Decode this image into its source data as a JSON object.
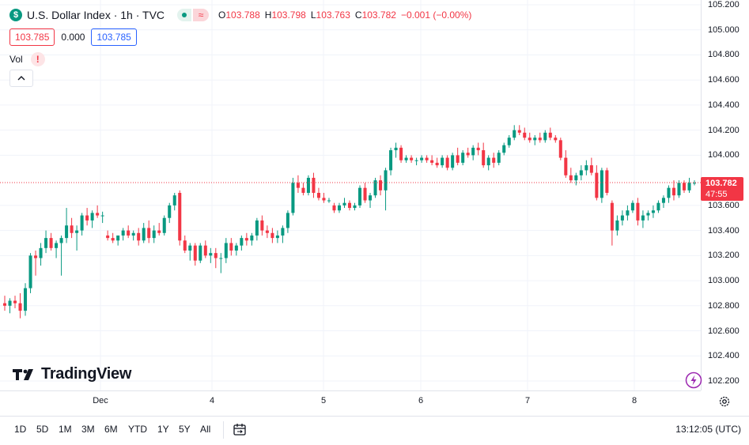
{
  "header": {
    "logo_letter": "$",
    "title": "U.S. Dollar Index · 1h · TVC",
    "wave_glyph": "≈",
    "ohlc": [
      {
        "label": "O",
        "value": "103.788"
      },
      {
        "label": "H",
        "value": "103.798"
      },
      {
        "label": "L",
        "value": "103.763"
      },
      {
        "label": "C",
        "value": "103.782"
      },
      {
        "label": "",
        "value": "−0.001 (−0.00%)"
      }
    ]
  },
  "quote": {
    "bid": "103.785",
    "spread": "0.000",
    "ask": "103.785"
  },
  "volume": {
    "label": "Vol",
    "warning": "!"
  },
  "brand": "TradingView",
  "last_price": {
    "price": "103.782",
    "countdown": "47:55",
    "color": "#f23645"
  },
  "colors": {
    "up": "#089981",
    "down": "#f23645",
    "accent": "#2962ff"
  },
  "range_buttons": [
    "1D",
    "5D",
    "1M",
    "3M",
    "6M",
    "YTD",
    "1Y",
    "5Y",
    "All"
  ],
  "clock": "13:12:05 (UTC)",
  "chart_data": {
    "type": "candlestick",
    "title": "U.S. Dollar Index · 1h · TVC",
    "yaxis": {
      "ticks": [
        "105.200",
        "105.000",
        "104.800",
        "104.600",
        "104.400",
        "104.200",
        "104.000",
        "103.600",
        "103.400",
        "103.200",
        "103.000",
        "102.800",
        "102.600",
        "102.400",
        "102.200"
      ],
      "ylim": [
        102.1,
        105.25
      ]
    },
    "xaxis": {
      "ticks": [
        "Dec",
        "4",
        "5",
        "6",
        "7",
        "8"
      ]
    },
    "last_price_line": 103.782,
    "series": [
      {
        "o": 102.82,
        "h": 102.88,
        "l": 102.76,
        "c": 102.8
      },
      {
        "o": 102.8,
        "h": 102.86,
        "l": 102.74,
        "c": 102.84
      },
      {
        "o": 102.84,
        "h": 102.88,
        "l": 102.78,
        "c": 102.82
      },
      {
        "o": 102.82,
        "h": 102.9,
        "l": 102.7,
        "c": 102.76
      },
      {
        "o": 102.76,
        "h": 102.98,
        "l": 102.72,
        "c": 102.94
      },
      {
        "o": 102.94,
        "h": 103.22,
        "l": 102.9,
        "c": 103.2
      },
      {
        "o": 103.2,
        "h": 103.24,
        "l": 103.04,
        "c": 103.18
      },
      {
        "o": 103.18,
        "h": 103.3,
        "l": 103.12,
        "c": 103.26
      },
      {
        "o": 103.26,
        "h": 103.4,
        "l": 103.22,
        "c": 103.34
      },
      {
        "o": 103.34,
        "h": 103.38,
        "l": 103.24,
        "c": 103.26
      },
      {
        "o": 103.26,
        "h": 103.32,
        "l": 103.18,
        "c": 103.3
      },
      {
        "o": 103.3,
        "h": 103.36,
        "l": 103.04,
        "c": 103.34
      },
      {
        "o": 103.34,
        "h": 103.58,
        "l": 103.3,
        "c": 103.44
      },
      {
        "o": 103.44,
        "h": 103.5,
        "l": 103.34,
        "c": 103.38
      },
      {
        "o": 103.38,
        "h": 103.44,
        "l": 103.24,
        "c": 103.4
      },
      {
        "o": 103.4,
        "h": 103.54,
        "l": 103.36,
        "c": 103.52
      },
      {
        "o": 103.52,
        "h": 103.58,
        "l": 103.44,
        "c": 103.48
      },
      {
        "o": 103.48,
        "h": 103.56,
        "l": 103.42,
        "c": 103.54
      },
      {
        "o": 103.54,
        "h": 103.6,
        "l": 103.5,
        "c": 103.52
      },
      {
        "o": 103.52,
        "h": 103.55,
        "l": 103.46,
        "c": 103.52
      },
      {
        "o": 103.36,
        "h": 103.4,
        "l": 103.32,
        "c": 103.34
      },
      {
        "o": 103.34,
        "h": 103.38,
        "l": 103.3,
        "c": 103.32
      },
      {
        "o": 103.32,
        "h": 103.36,
        "l": 103.28,
        "c": 103.36
      },
      {
        "o": 103.36,
        "h": 103.42,
        "l": 103.32,
        "c": 103.4
      },
      {
        "o": 103.4,
        "h": 103.44,
        "l": 103.34,
        "c": 103.36
      },
      {
        "o": 103.36,
        "h": 103.4,
        "l": 103.32,
        "c": 103.38
      },
      {
        "o": 103.38,
        "h": 103.42,
        "l": 103.28,
        "c": 103.32
      },
      {
        "o": 103.32,
        "h": 103.46,
        "l": 103.3,
        "c": 103.42
      },
      {
        "o": 103.42,
        "h": 103.48,
        "l": 103.3,
        "c": 103.34
      },
      {
        "o": 103.34,
        "h": 103.44,
        "l": 103.3,
        "c": 103.4
      },
      {
        "o": 103.4,
        "h": 103.46,
        "l": 103.36,
        "c": 103.38
      },
      {
        "o": 103.38,
        "h": 103.52,
        "l": 103.36,
        "c": 103.5
      },
      {
        "o": 103.5,
        "h": 103.62,
        "l": 103.46,
        "c": 103.6
      },
      {
        "o": 103.6,
        "h": 103.7,
        "l": 103.56,
        "c": 103.68
      },
      {
        "o": 103.7,
        "h": 103.72,
        "l": 103.28,
        "c": 103.32
      },
      {
        "o": 103.32,
        "h": 103.36,
        "l": 103.22,
        "c": 103.24
      },
      {
        "o": 103.24,
        "h": 103.3,
        "l": 103.16,
        "c": 103.28
      },
      {
        "o": 103.28,
        "h": 103.3,
        "l": 103.12,
        "c": 103.16
      },
      {
        "o": 103.16,
        "h": 103.3,
        "l": 103.14,
        "c": 103.28
      },
      {
        "o": 103.28,
        "h": 103.32,
        "l": 103.18,
        "c": 103.2
      },
      {
        "o": 103.2,
        "h": 103.26,
        "l": 103.14,
        "c": 103.22
      },
      {
        "o": 103.22,
        "h": 103.26,
        "l": 103.1,
        "c": 103.18
      },
      {
        "o": 103.18,
        "h": 103.22,
        "l": 103.06,
        "c": 103.18
      },
      {
        "o": 103.18,
        "h": 103.34,
        "l": 103.14,
        "c": 103.3
      },
      {
        "o": 103.3,
        "h": 103.34,
        "l": 103.2,
        "c": 103.24
      },
      {
        "o": 103.24,
        "h": 103.3,
        "l": 103.2,
        "c": 103.28
      },
      {
        "o": 103.28,
        "h": 103.36,
        "l": 103.24,
        "c": 103.34
      },
      {
        "o": 103.34,
        "h": 103.38,
        "l": 103.28,
        "c": 103.32
      },
      {
        "o": 103.32,
        "h": 103.38,
        "l": 103.28,
        "c": 103.36
      },
      {
        "o": 103.36,
        "h": 103.5,
        "l": 103.32,
        "c": 103.48
      },
      {
        "o": 103.48,
        "h": 103.52,
        "l": 103.36,
        "c": 103.4
      },
      {
        "o": 103.4,
        "h": 103.44,
        "l": 103.34,
        "c": 103.38
      },
      {
        "o": 103.38,
        "h": 103.42,
        "l": 103.3,
        "c": 103.34
      },
      {
        "o": 103.34,
        "h": 103.4,
        "l": 103.3,
        "c": 103.36
      },
      {
        "o": 103.36,
        "h": 103.44,
        "l": 103.3,
        "c": 103.42
      },
      {
        "o": 103.42,
        "h": 103.56,
        "l": 103.38,
        "c": 103.54
      },
      {
        "o": 103.54,
        "h": 103.82,
        "l": 103.52,
        "c": 103.78
      },
      {
        "o": 103.78,
        "h": 103.84,
        "l": 103.7,
        "c": 103.74
      },
      {
        "o": 103.74,
        "h": 103.78,
        "l": 103.68,
        "c": 103.7
      },
      {
        "o": 103.7,
        "h": 103.84,
        "l": 103.68,
        "c": 103.82
      },
      {
        "o": 103.82,
        "h": 103.86,
        "l": 103.66,
        "c": 103.7
      },
      {
        "o": 103.7,
        "h": 103.74,
        "l": 103.64,
        "c": 103.66
      },
      {
        "o": 103.66,
        "h": 103.7,
        "l": 103.62,
        "c": 103.64
      },
      {
        "o": 103.64,
        "h": 103.66,
        "l": 103.62,
        "c": 103.64
      },
      {
        "o": 103.6,
        "h": 103.62,
        "l": 103.54,
        "c": 103.56
      },
      {
        "o": 103.56,
        "h": 103.62,
        "l": 103.54,
        "c": 103.6
      },
      {
        "o": 103.6,
        "h": 103.66,
        "l": 103.58,
        "c": 103.62
      },
      {
        "o": 103.62,
        "h": 103.64,
        "l": 103.56,
        "c": 103.58
      },
      {
        "o": 103.58,
        "h": 103.62,
        "l": 103.56,
        "c": 103.6
      },
      {
        "o": 103.6,
        "h": 103.76,
        "l": 103.58,
        "c": 103.74
      },
      {
        "o": 103.74,
        "h": 103.78,
        "l": 103.62,
        "c": 103.64
      },
      {
        "o": 103.64,
        "h": 103.7,
        "l": 103.58,
        "c": 103.68
      },
      {
        "o": 103.68,
        "h": 103.82,
        "l": 103.66,
        "c": 103.8
      },
      {
        "o": 103.8,
        "h": 103.84,
        "l": 103.68,
        "c": 103.72
      },
      {
        "o": 103.72,
        "h": 103.9,
        "l": 103.56,
        "c": 103.88
      },
      {
        "o": 103.88,
        "h": 104.06,
        "l": 103.84,
        "c": 104.04
      },
      {
        "o": 104.04,
        "h": 104.1,
        "l": 103.98,
        "c": 104.06
      },
      {
        "o": 104.06,
        "h": 104.08,
        "l": 103.94,
        "c": 103.96
      },
      {
        "o": 103.96,
        "h": 104.0,
        "l": 103.94,
        "c": 103.98
      },
      {
        "o": 103.98,
        "h": 104.0,
        "l": 103.94,
        "c": 103.96
      },
      {
        "o": 103.96,
        "h": 103.98,
        "l": 103.92,
        "c": 103.96
      },
      {
        "o": 103.96,
        "h": 104.0,
        "l": 103.94,
        "c": 103.98
      },
      {
        "o": 103.98,
        "h": 104.0,
        "l": 103.94,
        "c": 103.96
      },
      {
        "o": 103.96,
        "h": 104.0,
        "l": 103.92,
        "c": 103.94
      },
      {
        "o": 103.94,
        "h": 103.98,
        "l": 103.9,
        "c": 103.92
      },
      {
        "o": 103.92,
        "h": 104.0,
        "l": 103.9,
        "c": 103.98
      },
      {
        "o": 103.98,
        "h": 104.0,
        "l": 103.88,
        "c": 103.9
      },
      {
        "o": 103.9,
        "h": 104.02,
        "l": 103.88,
        "c": 104.0
      },
      {
        "o": 104.0,
        "h": 104.06,
        "l": 103.92,
        "c": 103.94
      },
      {
        "o": 103.94,
        "h": 104.04,
        "l": 103.92,
        "c": 104.02
      },
      {
        "o": 104.02,
        "h": 104.06,
        "l": 103.98,
        "c": 104.0
      },
      {
        "o": 104.0,
        "h": 104.08,
        "l": 103.96,
        "c": 104.06
      },
      {
        "o": 104.06,
        "h": 104.1,
        "l": 104.0,
        "c": 104.04
      },
      {
        "o": 104.04,
        "h": 104.1,
        "l": 103.9,
        "c": 103.92
      },
      {
        "o": 103.92,
        "h": 104.0,
        "l": 103.88,
        "c": 103.98
      },
      {
        "o": 103.98,
        "h": 104.02,
        "l": 103.9,
        "c": 103.94
      },
      {
        "o": 103.94,
        "h": 104.04,
        "l": 103.92,
        "c": 104.02
      },
      {
        "o": 104.02,
        "h": 104.1,
        "l": 104.0,
        "c": 104.08
      },
      {
        "o": 104.08,
        "h": 104.16,
        "l": 104.06,
        "c": 104.14
      },
      {
        "o": 104.14,
        "h": 104.24,
        "l": 104.12,
        "c": 104.2
      },
      {
        "o": 104.2,
        "h": 104.24,
        "l": 104.16,
        "c": 104.18
      },
      {
        "o": 104.18,
        "h": 104.22,
        "l": 104.12,
        "c": 104.14
      },
      {
        "o": 104.14,
        "h": 104.18,
        "l": 104.1,
        "c": 104.12
      },
      {
        "o": 104.12,
        "h": 104.16,
        "l": 104.08,
        "c": 104.14
      },
      {
        "o": 104.14,
        "h": 104.18,
        "l": 104.1,
        "c": 104.12
      },
      {
        "o": 104.12,
        "h": 104.2,
        "l": 104.1,
        "c": 104.18
      },
      {
        "o": 104.18,
        "h": 104.22,
        "l": 104.12,
        "c": 104.14
      },
      {
        "o": 104.14,
        "h": 104.16,
        "l": 104.1,
        "c": 104.12
      },
      {
        "o": 104.12,
        "h": 104.14,
        "l": 103.96,
        "c": 103.98
      },
      {
        "o": 103.98,
        "h": 104.04,
        "l": 103.82,
        "c": 103.84
      },
      {
        "o": 103.84,
        "h": 103.9,
        "l": 103.78,
        "c": 103.8
      },
      {
        "o": 103.8,
        "h": 103.86,
        "l": 103.76,
        "c": 103.84
      },
      {
        "o": 103.84,
        "h": 103.92,
        "l": 103.8,
        "c": 103.88
      },
      {
        "o": 103.88,
        "h": 103.96,
        "l": 103.84,
        "c": 103.92
      },
      {
        "o": 103.92,
        "h": 103.98,
        "l": 103.84,
        "c": 103.86
      },
      {
        "o": 103.86,
        "h": 103.92,
        "l": 103.64,
        "c": 103.66
      },
      {
        "o": 103.66,
        "h": 103.9,
        "l": 103.62,
        "c": 103.88
      },
      {
        "o": 103.88,
        "h": 103.9,
        "l": 103.68,
        "c": 103.7
      },
      {
        "o": 103.62,
        "h": 103.64,
        "l": 103.28,
        "c": 103.4
      },
      {
        "o": 103.4,
        "h": 103.52,
        "l": 103.36,
        "c": 103.48
      },
      {
        "o": 103.48,
        "h": 103.56,
        "l": 103.44,
        "c": 103.52
      },
      {
        "o": 103.52,
        "h": 103.6,
        "l": 103.48,
        "c": 103.56
      },
      {
        "o": 103.56,
        "h": 103.64,
        "l": 103.54,
        "c": 103.62
      },
      {
        "o": 103.62,
        "h": 103.66,
        "l": 103.44,
        "c": 103.48
      },
      {
        "o": 103.48,
        "h": 103.56,
        "l": 103.42,
        "c": 103.52
      },
      {
        "o": 103.52,
        "h": 103.56,
        "l": 103.48,
        "c": 103.54
      },
      {
        "o": 103.54,
        "h": 103.6,
        "l": 103.5,
        "c": 103.56
      },
      {
        "o": 103.56,
        "h": 103.64,
        "l": 103.54,
        "c": 103.62
      },
      {
        "o": 103.62,
        "h": 103.68,
        "l": 103.58,
        "c": 103.66
      },
      {
        "o": 103.66,
        "h": 103.76,
        "l": 103.62,
        "c": 103.74
      },
      {
        "o": 103.74,
        "h": 103.8,
        "l": 103.64,
        "c": 103.68
      },
      {
        "o": 103.68,
        "h": 103.8,
        "l": 103.66,
        "c": 103.78
      },
      {
        "o": 103.78,
        "h": 103.8,
        "l": 103.7,
        "c": 103.72
      },
      {
        "o": 103.72,
        "h": 103.82,
        "l": 103.7,
        "c": 103.78
      },
      {
        "o": 103.78,
        "h": 103.8,
        "l": 103.76,
        "c": 103.78
      }
    ]
  }
}
